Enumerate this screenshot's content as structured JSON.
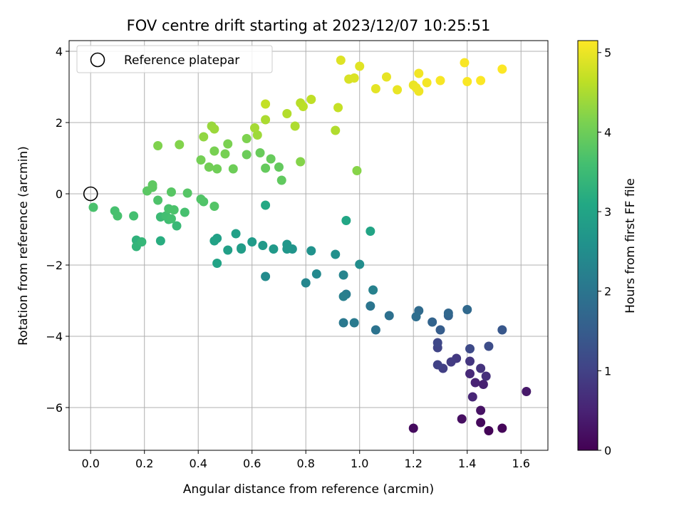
{
  "chart_data": {
    "type": "scatter",
    "title": "FOV centre drift starting at 2023/12/07 10:25:51",
    "xlabel": "Angular distance from reference (arcmin)",
    "ylabel": "Rotation from reference (arcmin)",
    "xlim": [
      -0.08,
      1.7
    ],
    "ylim": [
      -7.2,
      4.3
    ],
    "xticks": [
      0.0,
      0.2,
      0.4,
      0.6,
      0.8,
      1.0,
      1.2,
      1.4,
      1.6
    ],
    "xtick_labels": [
      "0.0",
      "0.2",
      "0.4",
      "0.6",
      "0.8",
      "1.0",
      "1.2",
      "1.4",
      "1.6"
    ],
    "yticks": [
      -6,
      -4,
      -2,
      0,
      2,
      4
    ],
    "ytick_labels": [
      "−6",
      "−4",
      "−2",
      "0",
      "2",
      "4"
    ],
    "grid": true,
    "legend": {
      "position": "top-left",
      "entries": [
        "Reference platepar"
      ]
    },
    "reference_point": {
      "x": 0.0,
      "y": 0.0
    },
    "colorbar": {
      "label": "Hours from first FF file",
      "range": [
        0,
        5.15
      ],
      "ticks": [
        0,
        1,
        2,
        3,
        4,
        5
      ],
      "tick_labels": [
        "0",
        "1",
        "2",
        "3",
        "4",
        "5"
      ],
      "colormap": "viridis"
    },
    "points": [
      [
        1.48,
        -6.65,
        0.05
      ],
      [
        1.53,
        -6.58,
        0.08
      ],
      [
        1.45,
        -6.42,
        0.12
      ],
      [
        1.2,
        -6.58,
        0.15
      ],
      [
        1.38,
        -6.32,
        0.2
      ],
      [
        1.45,
        -6.08,
        0.25
      ],
      [
        1.62,
        -5.55,
        0.35
      ],
      [
        1.46,
        -5.35,
        0.45
      ],
      [
        1.43,
        -5.3,
        0.5
      ],
      [
        1.42,
        -5.7,
        0.55
      ],
      [
        1.41,
        -5.05,
        0.6
      ],
      [
        1.47,
        -5.12,
        0.7
      ],
      [
        1.45,
        -4.9,
        0.75
      ],
      [
        1.41,
        -4.7,
        0.8
      ],
      [
        1.36,
        -4.62,
        0.85
      ],
      [
        1.34,
        -4.72,
        0.9
      ],
      [
        1.31,
        -4.9,
        0.95
      ],
      [
        1.29,
        -4.8,
        1.0
      ],
      [
        1.29,
        -4.32,
        1.05
      ],
      [
        1.29,
        -4.18,
        1.1
      ],
      [
        1.41,
        -4.35,
        1.15
      ],
      [
        1.48,
        -4.28,
        1.2
      ],
      [
        1.53,
        -3.82,
        1.4
      ],
      [
        1.3,
        -3.82,
        1.5
      ],
      [
        1.33,
        -3.42,
        1.6
      ],
      [
        1.27,
        -3.6,
        1.65
      ],
      [
        1.33,
        -3.35,
        1.7
      ],
      [
        1.4,
        -3.25,
        1.75
      ],
      [
        1.22,
        -3.28,
        1.8
      ],
      [
        1.21,
        -3.45,
        1.85
      ],
      [
        1.11,
        -3.42,
        1.9
      ],
      [
        1.06,
        -3.82,
        1.95
      ],
      [
        1.04,
        -3.15,
        2.0
      ],
      [
        0.94,
        -3.62,
        2.05
      ],
      [
        0.98,
        -3.62,
        2.1
      ],
      [
        0.95,
        -2.82,
        2.15
      ],
      [
        0.94,
        -2.88,
        2.2
      ],
      [
        1.05,
        -2.7,
        2.25
      ],
      [
        0.94,
        -2.28,
        2.3
      ],
      [
        0.8,
        -2.5,
        2.35
      ],
      [
        0.84,
        -2.25,
        2.4
      ],
      [
        0.65,
        -2.32,
        2.45
      ],
      [
        1.0,
        -1.98,
        2.5
      ],
      [
        0.91,
        -1.7,
        2.55
      ],
      [
        0.82,
        -1.6,
        2.6
      ],
      [
        0.75,
        -1.55,
        2.65
      ],
      [
        0.73,
        -1.55,
        2.7
      ],
      [
        0.73,
        -1.42,
        2.72
      ],
      [
        0.68,
        -1.55,
        2.75
      ],
      [
        0.64,
        -1.45,
        2.78
      ],
      [
        0.6,
        -1.35,
        2.8
      ],
      [
        0.56,
        -1.52,
        2.82
      ],
      [
        0.56,
        -1.55,
        2.85
      ],
      [
        0.51,
        -1.58,
        2.88
      ],
      [
        0.54,
        -1.12,
        2.9
      ],
      [
        0.47,
        -1.25,
        2.92
      ],
      [
        0.46,
        -1.32,
        2.95
      ],
      [
        0.47,
        -1.95,
        2.98
      ],
      [
        1.04,
        -1.05,
        3.0
      ],
      [
        0.95,
        -0.75,
        3.05
      ],
      [
        0.65,
        -0.32,
        3.1
      ],
      [
        0.26,
        -1.32,
        3.2
      ],
      [
        0.17,
        -1.3,
        3.3
      ],
      [
        0.17,
        -1.48,
        3.35
      ],
      [
        0.19,
        -1.35,
        3.4
      ],
      [
        0.32,
        -0.9,
        3.45
      ],
      [
        0.26,
        -0.65,
        3.5
      ],
      [
        0.29,
        -0.72,
        3.55
      ],
      [
        0.28,
        -0.62,
        3.58
      ],
      [
        0.3,
        -0.7,
        3.6
      ],
      [
        0.35,
        -0.52,
        3.62
      ],
      [
        0.29,
        -0.42,
        3.65
      ],
      [
        0.31,
        -0.45,
        3.68
      ],
      [
        0.25,
        -0.18,
        3.7
      ],
      [
        0.42,
        -0.22,
        3.72
      ],
      [
        0.41,
        -0.15,
        3.74
      ],
      [
        0.46,
        -0.35,
        3.76
      ],
      [
        0.36,
        0.02,
        3.78
      ],
      [
        0.3,
        0.05,
        3.8
      ],
      [
        0.21,
        0.08,
        3.82
      ],
      [
        0.23,
        0.18,
        3.84
      ],
      [
        0.23,
        0.25,
        3.86
      ],
      [
        0.16,
        -0.62,
        3.6
      ],
      [
        0.09,
        -0.48,
        3.62
      ],
      [
        0.1,
        -0.62,
        3.64
      ],
      [
        0.01,
        -0.38,
        3.66
      ],
      [
        0.71,
        0.38,
        3.88
      ],
      [
        0.7,
        0.75,
        3.9
      ],
      [
        0.65,
        0.72,
        3.92
      ],
      [
        0.67,
        0.98,
        3.94
      ],
      [
        0.63,
        1.15,
        3.96
      ],
      [
        0.58,
        1.1,
        3.98
      ],
      [
        0.53,
        0.7,
        4.0
      ],
      [
        0.47,
        0.7,
        4.02
      ],
      [
        0.44,
        0.75,
        4.04
      ],
      [
        0.41,
        0.95,
        4.06
      ],
      [
        0.5,
        1.12,
        4.08
      ],
      [
        0.46,
        1.2,
        4.1
      ],
      [
        0.51,
        1.4,
        4.12
      ],
      [
        0.58,
        1.55,
        4.14
      ],
      [
        0.25,
        1.35,
        4.16
      ],
      [
        0.33,
        1.38,
        4.18
      ],
      [
        0.78,
        0.9,
        4.2
      ],
      [
        0.99,
        0.65,
        4.22
      ],
      [
        0.42,
        1.6,
        4.3
      ],
      [
        0.45,
        1.9,
        4.35
      ],
      [
        0.46,
        1.82,
        4.38
      ],
      [
        0.62,
        1.65,
        4.4
      ],
      [
        0.61,
        1.85,
        4.45
      ],
      [
        0.65,
        2.08,
        4.5
      ],
      [
        0.76,
        1.9,
        4.52
      ],
      [
        0.91,
        1.78,
        4.54
      ],
      [
        0.73,
        2.25,
        4.56
      ],
      [
        0.78,
        2.55,
        4.6
      ],
      [
        0.79,
        2.45,
        4.62
      ],
      [
        0.82,
        2.65,
        4.65
      ],
      [
        0.65,
        2.52,
        4.68
      ],
      [
        0.92,
        2.42,
        4.7
      ],
      [
        0.96,
        3.22,
        4.85
      ],
      [
        0.98,
        3.25,
        4.88
      ],
      [
        0.93,
        3.75,
        4.9
      ],
      [
        1.0,
        3.58,
        4.92
      ],
      [
        1.06,
        2.95,
        4.95
      ],
      [
        1.1,
        3.28,
        4.97
      ],
      [
        1.14,
        2.92,
        4.99
      ],
      [
        1.2,
        3.05,
        5.0
      ],
      [
        1.21,
        2.98,
        5.02
      ],
      [
        1.22,
        2.88,
        5.04
      ],
      [
        1.22,
        3.38,
        5.06
      ],
      [
        1.25,
        3.12,
        5.08
      ],
      [
        1.3,
        3.18,
        5.1
      ],
      [
        1.39,
        3.68,
        5.11
      ],
      [
        1.4,
        3.15,
        5.12
      ],
      [
        1.45,
        3.18,
        5.13
      ],
      [
        1.53,
        3.5,
        5.14
      ]
    ]
  }
}
